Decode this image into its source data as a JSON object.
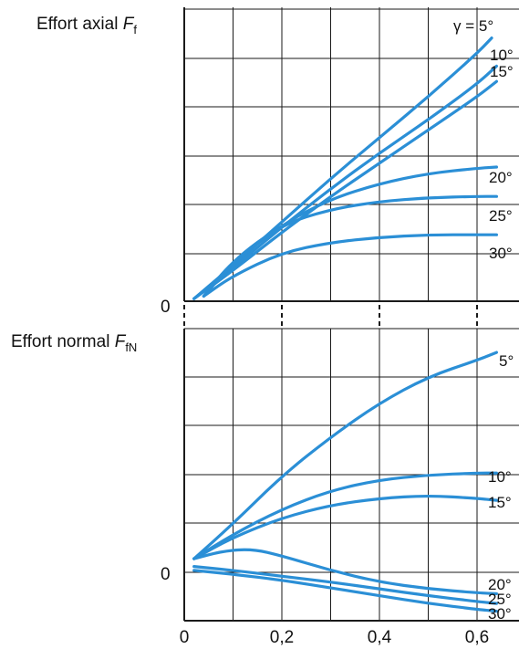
{
  "chart_data": [
    {
      "type": "line",
      "ylabel_text": "Effort axial ",
      "ylabel_symbol": "F",
      "ylabel_sub": "f",
      "zero_label": "0",
      "series": [
        {
          "name": "γ = 5°",
          "x": [
            0.02,
            0.1,
            0.2,
            0.3,
            0.4,
            0.5,
            0.6,
            0.63
          ],
          "y": [
            0.02,
            0.28,
            0.62,
            0.96,
            1.28,
            1.6,
            1.94,
            2.06
          ]
        },
        {
          "name": "10°",
          "x": [
            0.02,
            0.1,
            0.2,
            0.3,
            0.4,
            0.5,
            0.6,
            0.64
          ],
          "y": [
            0.02,
            0.26,
            0.58,
            0.88,
            1.16,
            1.42,
            1.7,
            1.84
          ]
        },
        {
          "name": "15°",
          "x": [
            0.02,
            0.1,
            0.2,
            0.3,
            0.4,
            0.5,
            0.6,
            0.64
          ],
          "y": [
            0.02,
            0.24,
            0.54,
            0.82,
            1.08,
            1.34,
            1.6,
            1.72
          ]
        },
        {
          "name": "20°",
          "x": [
            0.04,
            0.1,
            0.2,
            0.3,
            0.4,
            0.5,
            0.6,
            0.64
          ],
          "y": [
            0.04,
            0.3,
            0.6,
            0.8,
            0.92,
            1.0,
            1.04,
            1.05
          ]
        },
        {
          "name": "25°",
          "x": [
            0.04,
            0.1,
            0.2,
            0.3,
            0.4,
            0.5,
            0.6,
            0.64
          ],
          "y": [
            0.04,
            0.32,
            0.6,
            0.72,
            0.78,
            0.81,
            0.82,
            0.82
          ]
        },
        {
          "name": "30°",
          "x": [
            0.04,
            0.1,
            0.2,
            0.3,
            0.4,
            0.5,
            0.6,
            0.64
          ],
          "y": [
            0.04,
            0.2,
            0.38,
            0.46,
            0.5,
            0.52,
            0.52,
            0.52
          ]
        }
      ],
      "ylim": [
        0,
        2.3
      ],
      "xlim": [
        0,
        0.65
      ],
      "grid": true
    },
    {
      "type": "line",
      "ylabel_text": "Effort normal ",
      "ylabel_symbol": "F",
      "ylabel_sub": "fN",
      "zero_label": "0",
      "xtick_labels": [
        "0",
        "0,2",
        "0,4",
        "0,6"
      ],
      "series": [
        {
          "name": "5°",
          "x": [
            0.02,
            0.1,
            0.2,
            0.3,
            0.4,
            0.5,
            0.6,
            0.64
          ],
          "y": [
            0.28,
            1.0,
            1.98,
            2.78,
            3.48,
            4.02,
            4.36,
            4.52
          ]
        },
        {
          "name": "10°",
          "x": [
            0.02,
            0.1,
            0.2,
            0.3,
            0.4,
            0.5,
            0.6,
            0.64
          ],
          "y": [
            0.28,
            0.78,
            1.3,
            1.68,
            1.9,
            2.0,
            2.04,
            2.04
          ]
        },
        {
          "name": "15°",
          "x": [
            0.02,
            0.1,
            0.2,
            0.3,
            0.4,
            0.5,
            0.6,
            0.64
          ],
          "y": [
            0.28,
            0.72,
            1.12,
            1.38,
            1.52,
            1.58,
            1.52,
            1.48
          ]
        },
        {
          "name": "20°",
          "x": [
            0.02,
            0.08,
            0.14,
            0.2,
            0.3,
            0.4,
            0.5,
            0.6,
            0.64
          ],
          "y": [
            0.28,
            0.44,
            0.48,
            0.34,
            0.04,
            -0.2,
            -0.34,
            -0.42,
            -0.44
          ]
        },
        {
          "name": "25°",
          "x": [
            0.02,
            0.1,
            0.2,
            0.3,
            0.4,
            0.5,
            0.6,
            0.64
          ],
          "y": [
            0.12,
            0.04,
            -0.08,
            -0.2,
            -0.34,
            -0.48,
            -0.6,
            -0.64
          ]
        },
        {
          "name": "30°",
          "x": [
            0.02,
            0.1,
            0.2,
            0.3,
            0.4,
            0.5,
            0.6,
            0.64
          ],
          "y": [
            0.04,
            -0.04,
            -0.16,
            -0.32,
            -0.48,
            -0.64,
            -0.76,
            -0.8
          ]
        }
      ],
      "ylim": [
        -1,
        4.5
      ],
      "xlim": [
        0,
        0.65
      ],
      "grid": true
    }
  ],
  "colors": {
    "line": "#2b8fd6",
    "grid": "#1a1a1a",
    "frame": "#1a1a1a"
  }
}
